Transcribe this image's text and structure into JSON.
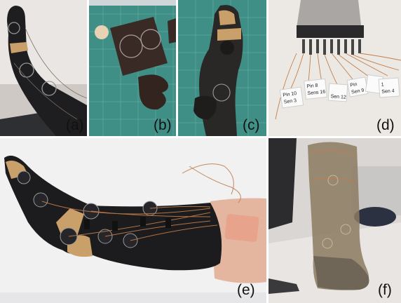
{
  "panels": [
    {
      "id": "a",
      "label": "(a)"
    },
    {
      "id": "b",
      "label": "(b)"
    },
    {
      "id": "c",
      "label": "(c)"
    },
    {
      "id": "d",
      "label": "(d)"
    },
    {
      "id": "e",
      "label": "(e)"
    },
    {
      "id": "f",
      "label": "(f)"
    }
  ],
  "tags": [
    {
      "line1": "Pin 10",
      "line2": "Sen 3"
    },
    {
      "line1": "Pin 8",
      "line2": "Sens 16"
    },
    {
      "line1": "",
      "line2": "Sen 12"
    },
    {
      "line1": "Pin",
      "line2": "Sen 9"
    },
    {
      "line1": "",
      "line2": ""
    },
    {
      "line1": "1",
      "line2": "Sen 4"
    }
  ],
  "colors": {
    "sock": "#1c1b1d",
    "tape": "#c9a06a",
    "mat": "#3f8f86",
    "skin": "#e4b6a0",
    "copper": "#c27d4a"
  }
}
